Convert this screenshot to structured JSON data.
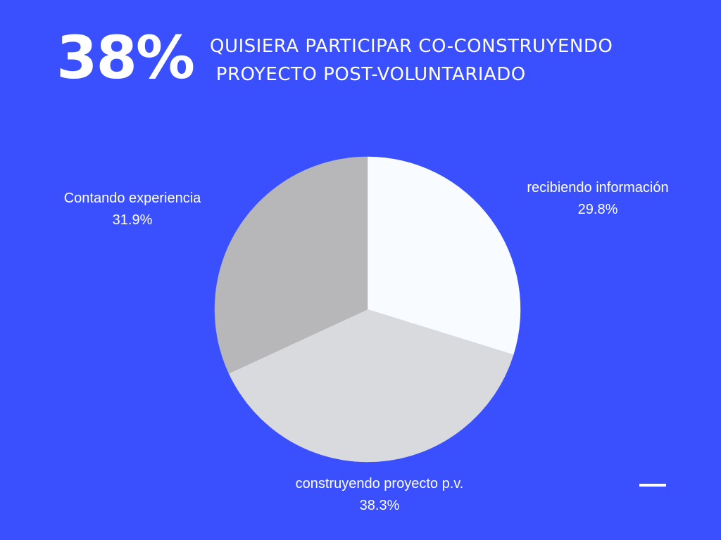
{
  "headline": {
    "value": "38%",
    "line1": "QUISIERA PARTICIPAR CO-CONSTRUYENDO",
    "line2": " PROYECTO POST-VOLUNTARIADO"
  },
  "colors": {
    "background": "#3a50ff",
    "text": "#ffffff"
  },
  "chart_data": {
    "type": "pie",
    "title": "",
    "start": "12 o'clock, clockwise",
    "slices": [
      {
        "label": "recibiendo información",
        "value": 29.8,
        "value_label": "29.8%",
        "color": "#f8fbff"
      },
      {
        "label": "construyendo proyecto p.v.",
        "value": 38.3,
        "value_label": "38.3%",
        "color": "#d9dadd"
      },
      {
        "label": "Contando experiencia",
        "value": 31.9,
        "value_label": "31.9%",
        "color": "#b7b7b9"
      }
    ]
  }
}
